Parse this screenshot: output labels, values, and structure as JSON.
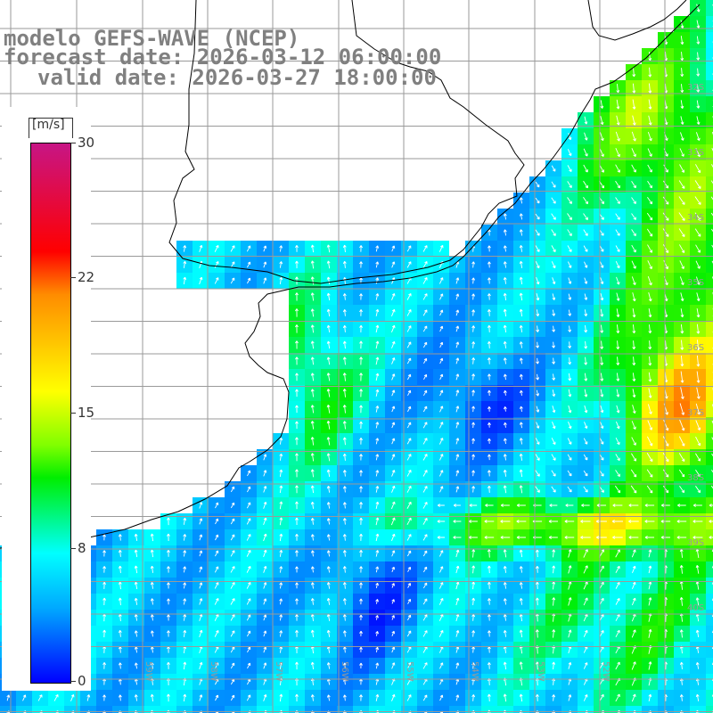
{
  "title": {
    "line1": "modelo GEFS-WAVE (NCEP)",
    "line2": "forecast date: 2026-03-12 06:00:00",
    "line3": "valid date: 2026-03-27 18:00:00"
  },
  "colorbar": {
    "unit": "[m/s]",
    "ticks": [
      "30",
      "22",
      "15",
      "8",
      "0"
    ],
    "min": 0,
    "max": 30,
    "colors": [
      "#0000ff",
      "#00aaff",
      "#00ffff",
      "#00ee00",
      "#7fff00",
      "#ffff00",
      "#ff8c00",
      "#ff0000",
      "#c71585"
    ]
  },
  "map": {
    "lat_labels": [
      "32S",
      "33S",
      "34S",
      "35S",
      "36S",
      "37S",
      "38S",
      "39S",
      "40S"
    ],
    "lon_labels": [
      "61W",
      "60W",
      "59W",
      "58W",
      "57W",
      "56W",
      "55W",
      "54W",
      "53W",
      "52W"
    ],
    "grid_line_color": "#9a9a9a",
    "coast_color": "#000000",
    "arrow_color": "#ffffff"
  }
}
